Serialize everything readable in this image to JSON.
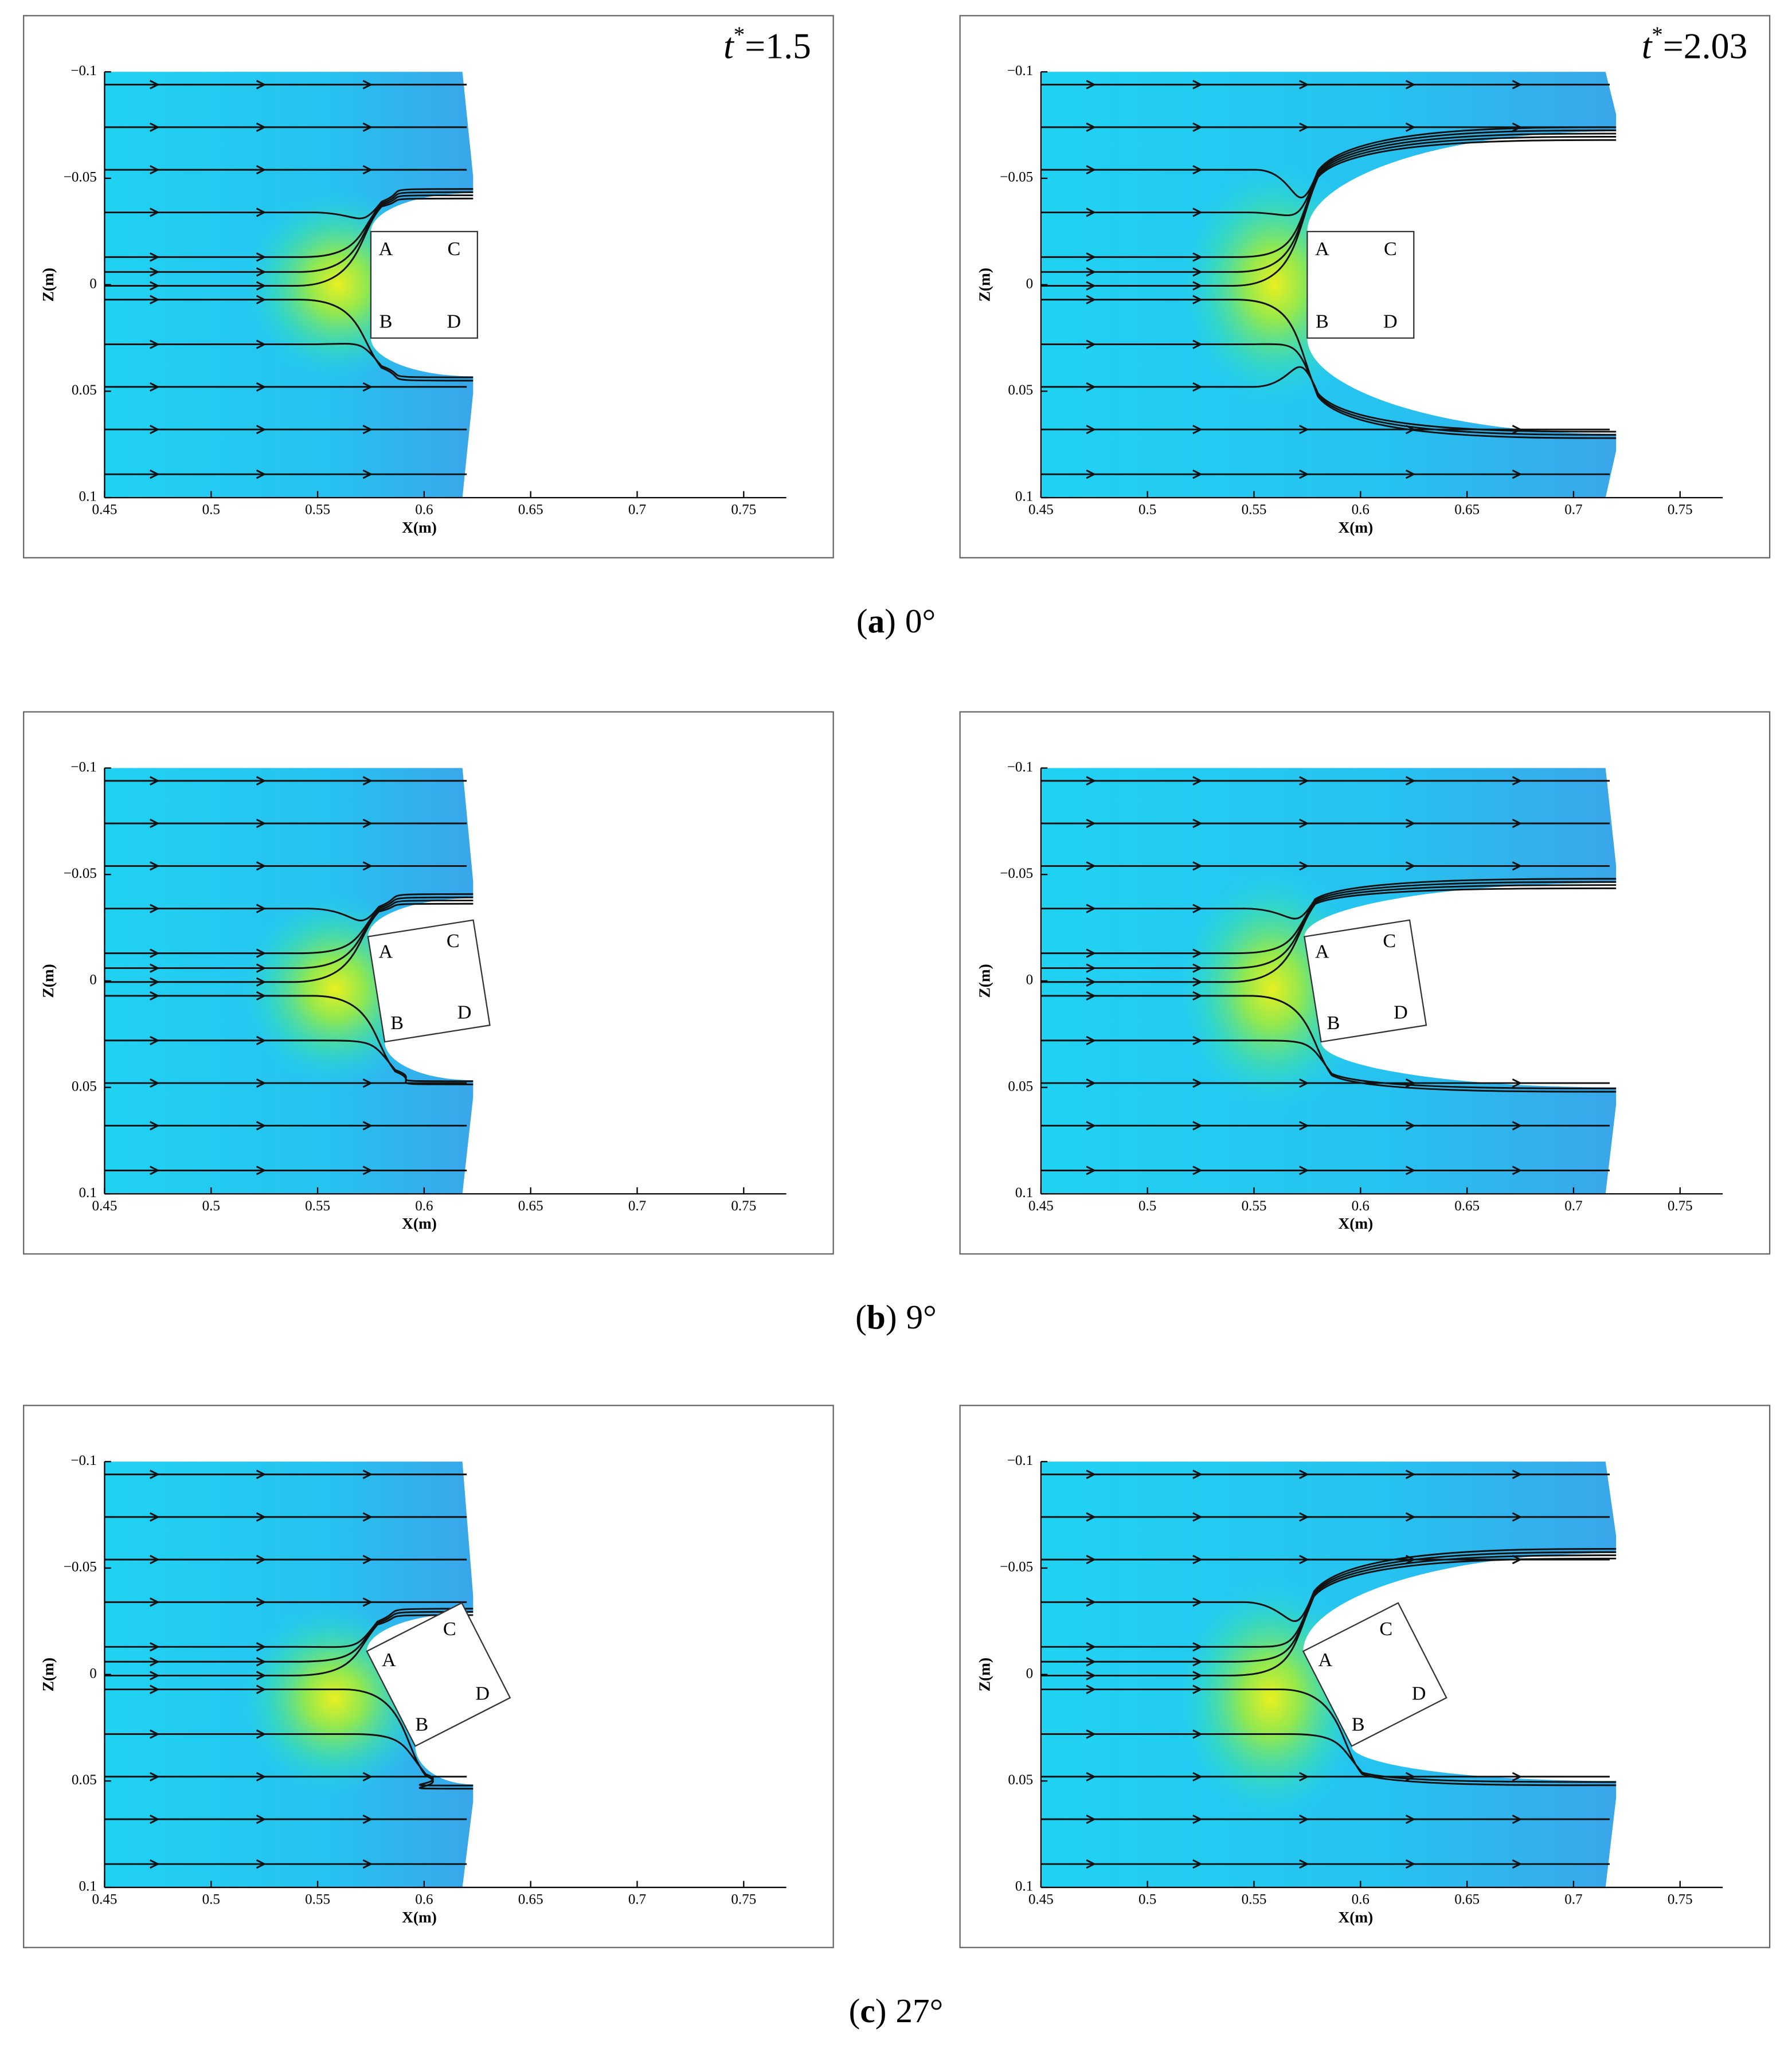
{
  "figure": {
    "axes": {
      "xlabel": "X(m)",
      "ylabel": "Z(m)",
      "xlim": [
        0.45,
        0.77
      ],
      "ylim": [
        -0.1,
        0.1
      ],
      "yreversed": true,
      "xticks": [
        0.45,
        0.5,
        0.55,
        0.6,
        0.65,
        0.7,
        0.75
      ],
      "yticks": [
        {
          "value": -0.1,
          "label": "−0.1"
        },
        {
          "value": -0.05,
          "label": "−0.05"
        },
        0,
        0.05,
        0.1
      ]
    },
    "corner_labels": [
      "A",
      "B",
      "C",
      "D"
    ],
    "time_labels": [
      {
        "var": "t",
        "sup": "*",
        "rest": "=1.5"
      },
      {
        "var": "t",
        "sup": "*",
        "rest": "=2.03"
      }
    ],
    "rows": [
      {
        "open": "(",
        "letter": "a",
        "close": ")",
        "angle": 0,
        "angle_label": "0°"
      },
      {
        "open": "(",
        "letter": "b",
        "close": ")",
        "angle": 9,
        "angle_label": "9°"
      },
      {
        "open": "(",
        "letter": "c",
        "close": ")",
        "angle": 27,
        "angle_label": "27°"
      }
    ]
  }
}
